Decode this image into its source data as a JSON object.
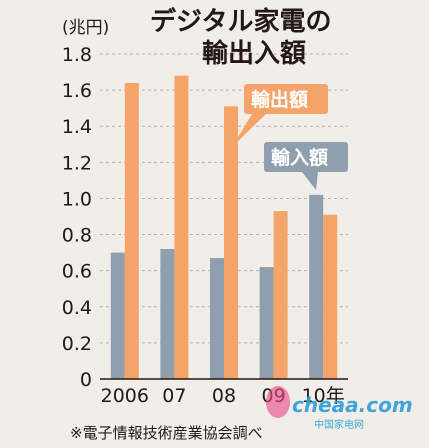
{
  "chart_data": {
    "type": "bar",
    "title_lines": [
      "デジタル家電の",
      "輸出入額"
    ],
    "unit_label": "(兆円)",
    "categories": [
      "2006",
      "07",
      "08",
      "09",
      "10年"
    ],
    "series": [
      {
        "name": "輸入額",
        "values": [
          0.7,
          0.72,
          0.67,
          0.62,
          1.02
        ],
        "color": "#8f9fae"
      },
      {
        "name": "輸出額",
        "values": [
          1.64,
          1.68,
          1.51,
          0.93,
          0.91
        ],
        "color": "#f4a468"
      }
    ],
    "ylim": [
      0,
      1.8
    ],
    "yticks": [
      "0",
      "0.2",
      "0.4",
      "0.6",
      "0.8",
      "1.0",
      "1.2",
      "1.4",
      "1.6",
      "1.8"
    ],
    "grid": true,
    "source_note": "※電子情報技術産業協会調べ",
    "watermark": {
      "logo": "cheaa.com",
      "subtitle": "中国家电网"
    }
  }
}
